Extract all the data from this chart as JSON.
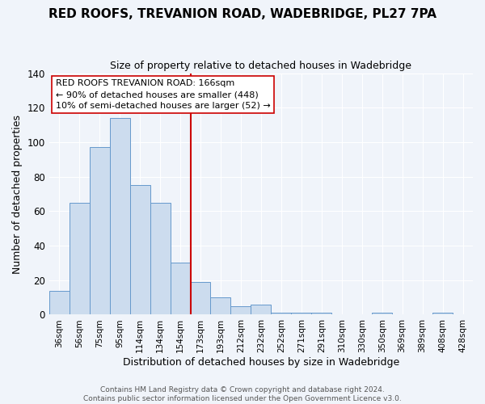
{
  "title": "RED ROOFS, TREVANION ROAD, WADEBRIDGE, PL27 7PA",
  "subtitle": "Size of property relative to detached houses in Wadebridge",
  "xlabel": "Distribution of detached houses by size in Wadebridge",
  "ylabel": "Number of detached properties",
  "annotation_line1": "RED ROOFS TREVANION ROAD: 166sqm",
  "annotation_line2": "← 90% of detached houses are smaller (448)",
  "annotation_line3": "10% of semi-detached houses are larger (52) →",
  "footer_line1": "Contains HM Land Registry data © Crown copyright and database right 2024.",
  "footer_line2": "Contains public sector information licensed under the Open Government Licence v3.0.",
  "categories": [
    "36sqm",
    "56sqm",
    "75sqm",
    "95sqm",
    "114sqm",
    "134sqm",
    "154sqm",
    "173sqm",
    "193sqm",
    "212sqm",
    "232sqm",
    "252sqm",
    "271sqm",
    "291sqm",
    "310sqm",
    "330sqm",
    "350sqm",
    "369sqm",
    "389sqm",
    "408sqm",
    "428sqm"
  ],
  "values": [
    14,
    65,
    97,
    114,
    75,
    65,
    30,
    19,
    10,
    5,
    6,
    1,
    1,
    1,
    0,
    0,
    1,
    0,
    0,
    1,
    0
  ],
  "bar_color": "#ccdcee",
  "bar_edge_color": "#6699cc",
  "vline_color": "#cc0000",
  "vline_index": 7,
  "ylim": [
    0,
    140
  ],
  "yticks": [
    0,
    20,
    40,
    60,
    80,
    100,
    120,
    140
  ],
  "background_color": "#f0f4fa",
  "plot_background": "#f0f4fa",
  "grid_color": "#ffffff",
  "annotation_box_facecolor": "#ffffff",
  "annotation_box_edgecolor": "#cc0000"
}
